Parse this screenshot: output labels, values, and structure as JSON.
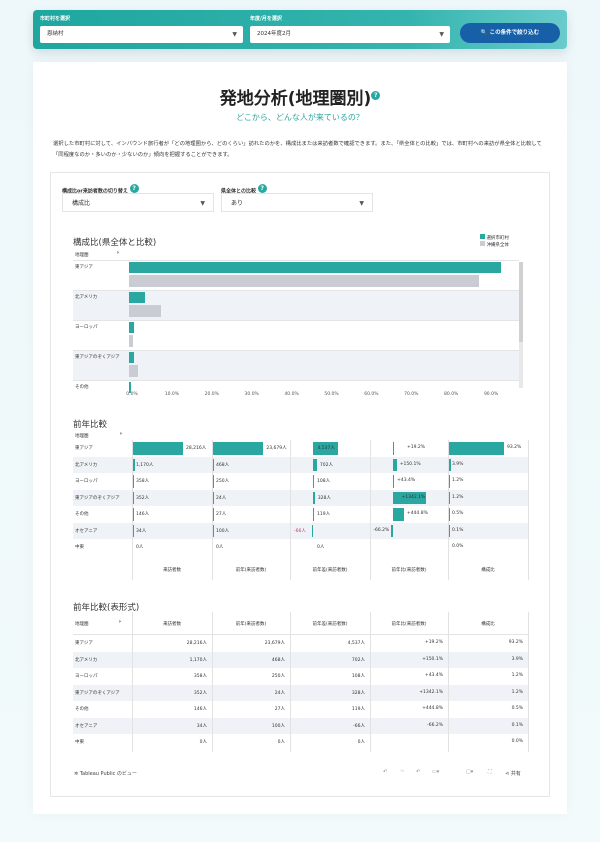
{
  "filters": {
    "municipality_label": "市町村を選択",
    "municipality_value": "恩納村",
    "period_label": "年度/月を選択",
    "period_value": "2024年度2月",
    "apply_button": "この条件で絞り込む"
  },
  "header": {
    "title": "発地分析(地理圏別)",
    "help": "?",
    "subtitle": "どこから、どんな人が来ているの？",
    "description": "選択した市町村に対して、インバウンド旅行者が「どの地理圏から、どのくらい」訪れたのかを、構成比または来訪者数で確認できます。また、「県全体との比較」では、市町村への来訪が県全体と比較して「同程度なのか・多いのか・少ないのか」傾向を把握することができます。"
  },
  "controls": {
    "toggle_label": "構成比or来訪者数の切り替え",
    "toggle_value": "構成比",
    "compare_label": "県全体との比較",
    "compare_value": "あり"
  },
  "colors": {
    "accent": "#2aa7a0",
    "prefecture": "#c9ccd3",
    "button": "#1760a8",
    "negative": "#c0407a"
  },
  "chart_data": {
    "type": "bar",
    "title": "構成比(県全体と比較)",
    "row_header": "地理圏",
    "categories": [
      "東アジア",
      "北アメリカ",
      "ヨーロッパ",
      "東アジアのぞくアジア",
      "その他"
    ],
    "series": [
      {
        "name": "選択市町村",
        "values": [
          93.2,
          3.9,
          1.2,
          1.2,
          0.5
        ]
      },
      {
        "name": "沖縄県全体",
        "values": [
          87.7,
          8.0,
          0.9,
          2.2,
          null
        ]
      }
    ],
    "xlim": [
      0,
      90
    ],
    "xticks": [
      "0.0%",
      "10.0%",
      "20.0%",
      "30.0%",
      "40.0%",
      "50.0%",
      "60.0%",
      "70.0%",
      "80.0%",
      "90.0%"
    ],
    "orientation": "horizontal",
    "legend": "top-right"
  },
  "yoy": {
    "title": "前年比較",
    "row_header": "地理圏",
    "table_title": "前年比較(表形式)",
    "columns": [
      "来訪者数",
      "前年(来訪者数)",
      "前年差(来訪者数)",
      "前年比(来訪者数)",
      "構成比"
    ],
    "rows": [
      {
        "region": "東アジア",
        "visitors": "28,216人",
        "prev": "23,679人",
        "diff": "4,537人",
        "ratio": "+19.2%",
        "share": "93.2%",
        "v": 28216,
        "p": 23679,
        "d": 4537,
        "r": 19.2,
        "s": 93.2
      },
      {
        "region": "北アメリカ",
        "visitors": "1,170人",
        "prev": "468人",
        "diff": "702人",
        "ratio": "+150.1%",
        "share": "3.9%",
        "v": 1170,
        "p": 468,
        "d": 702,
        "r": 150.1,
        "s": 3.9
      },
      {
        "region": "ヨーロッパ",
        "visitors": "358人",
        "prev": "250人",
        "diff": "108人",
        "ratio": "+43.4%",
        "share": "1.2%",
        "v": 358,
        "p": 250,
        "d": 108,
        "r": 43.4,
        "s": 1.2
      },
      {
        "region": "東アジアのぞくアジア",
        "visitors": "352人",
        "prev": "24人",
        "diff": "328人",
        "ratio": "+1342.1%",
        "share": "1.2%",
        "v": 352,
        "p": 24,
        "d": 328,
        "r": 1342.1,
        "s": 1.2
      },
      {
        "region": "その他",
        "visitors": "146人",
        "prev": "27人",
        "diff": "119人",
        "ratio": "+444.8%",
        "share": "0.5%",
        "v": 146,
        "p": 27,
        "d": 119,
        "r": 444.8,
        "s": 0.5
      },
      {
        "region": "オセアニア",
        "visitors": "34人",
        "prev": "100人",
        "diff": "-66人",
        "ratio": "-66.2%",
        "share": "0.1%",
        "v": 34,
        "p": 100,
        "d": -66,
        "r": -66.2,
        "s": 0.1
      },
      {
        "region": "中東",
        "visitors": "0人",
        "prev": "0人",
        "diff": "0人",
        "ratio": "",
        "share": "0.0%",
        "v": 0,
        "p": 0,
        "d": 0,
        "r": 0,
        "s": 0
      }
    ]
  },
  "footer": {
    "tableau_link": "Tableau Public のビュー",
    "share": "共有"
  }
}
